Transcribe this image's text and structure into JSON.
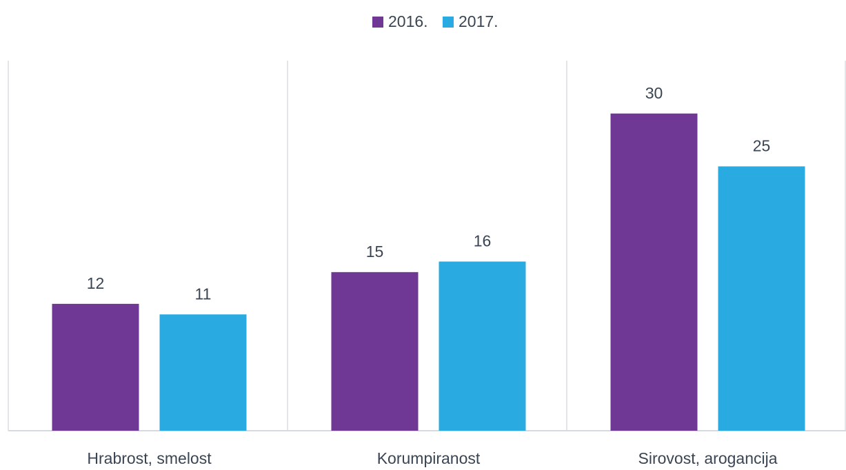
{
  "chart_data": {
    "type": "bar",
    "categories": [
      "Hrabrost, smelost",
      "Korumpiranost",
      "Sirovost, arogancija"
    ],
    "series": [
      {
        "name": "2016.",
        "color": "#6f3894",
        "values": [
          12,
          15,
          30
        ]
      },
      {
        "name": "2017.",
        "color": "#29abe2",
        "values": [
          11,
          16,
          25
        ]
      }
    ],
    "ylim": [
      0,
      35
    ],
    "legend": "top"
  }
}
